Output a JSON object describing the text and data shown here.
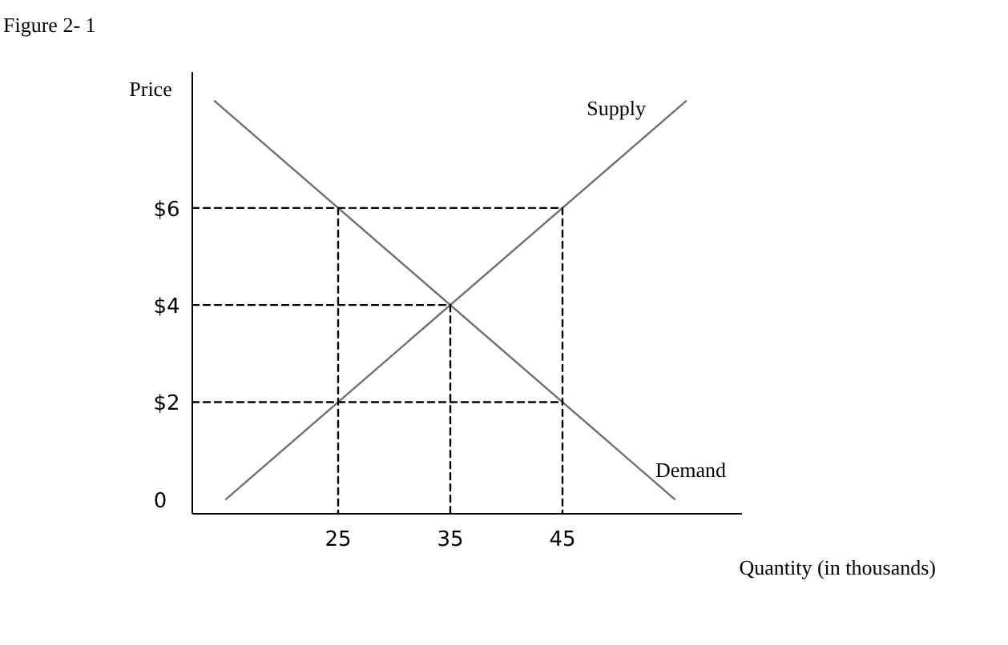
{
  "chart_data": {
    "type": "line",
    "title": "Figure 2- 1",
    "xlabel": "Quantity (in thousands)",
    "ylabel": "Price",
    "xlim": [
      12,
      61
    ],
    "xticks": [
      25,
      35,
      45
    ],
    "ylim": [
      -0.3,
      8.8
    ],
    "yticks": [
      {
        "value": 0,
        "label": "0"
      },
      {
        "value": 2,
        "label": "$2"
      },
      {
        "value": 4,
        "label": "$4"
      },
      {
        "value": 6,
        "label": "$6"
      }
    ],
    "grid": false,
    "marker": "none",
    "line_style": "solid",
    "series": [
      {
        "name": "Supply",
        "color": "#707070",
        "x": [
          15,
          56
        ],
        "values": [
          0,
          8.2
        ]
      },
      {
        "name": "Demand",
        "color": "#707070",
        "x": [
          14,
          55
        ],
        "values": [
          8.2,
          0
        ]
      },
      {
        "color": "#000000",
        "line_style": "dashed",
        "x": [
          12,
          45
        ],
        "values": [
          6,
          6
        ]
      },
      {
        "color": "#000000",
        "line_style": "dashed",
        "x": [
          12,
          35
        ],
        "values": [
          4,
          4
        ]
      },
      {
        "color": "#000000",
        "line_style": "dashed",
        "x": [
          12,
          45
        ],
        "values": [
          2,
          2
        ]
      },
      {
        "color": "#000000",
        "line_style": "dashed",
        "x": [
          25,
          25
        ],
        "values": [
          6,
          -0.3
        ]
      },
      {
        "color": "#000000",
        "line_style": "dashed",
        "x": [
          35,
          35
        ],
        "values": [
          4,
          -0.3
        ]
      },
      {
        "color": "#000000",
        "line_style": "dashed",
        "x": [
          45,
          45
        ],
        "values": [
          6,
          -0.3
        ]
      }
    ]
  }
}
